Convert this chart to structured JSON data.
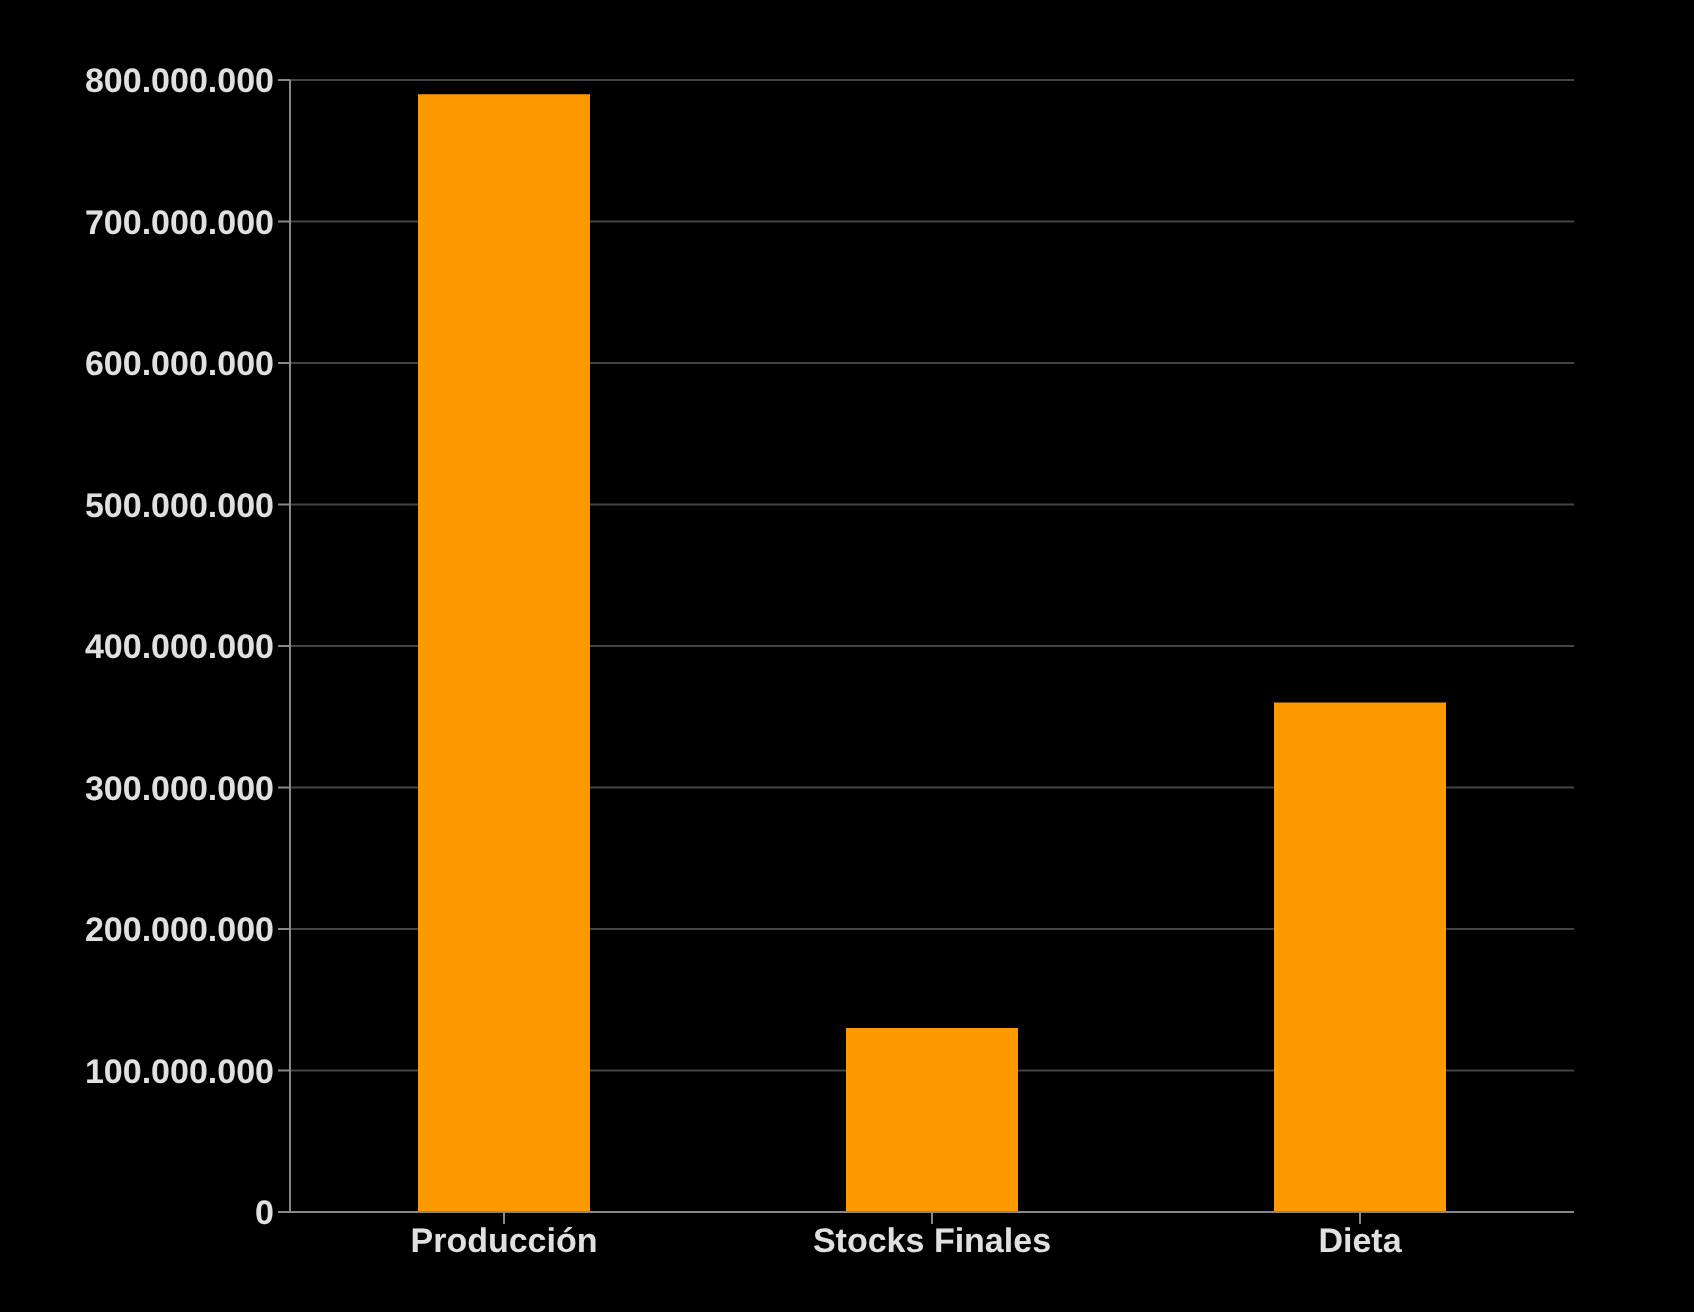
{
  "chart_data": {
    "type": "bar",
    "categories": [
      "Producción",
      "Stocks Finales",
      "Dieta"
    ],
    "values": [
      790000000,
      130000000,
      360000000
    ],
    "color": "#ff9900",
    "ylim": [
      0,
      800000000
    ],
    "yticks": [
      {
        "value": 0,
        "label": "0"
      },
      {
        "value": 100000000,
        "label": "100.000.000"
      },
      {
        "value": 200000000,
        "label": "200.000.000"
      },
      {
        "value": 300000000,
        "label": "300.000.000"
      },
      {
        "value": 400000000,
        "label": "400.000.000"
      },
      {
        "value": 500000000,
        "label": "500.000.000"
      },
      {
        "value": 600000000,
        "label": "600.000.000"
      },
      {
        "value": 700000000,
        "label": "700.000.000"
      },
      {
        "value": 800000000,
        "label": "800.000.000"
      }
    ],
    "grid": "y"
  }
}
